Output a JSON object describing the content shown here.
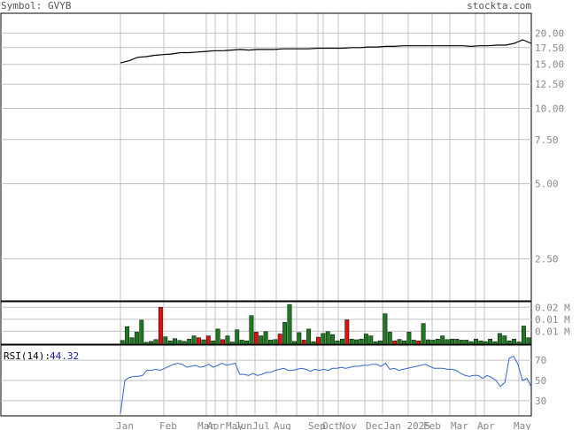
{
  "header": {
    "symbol_label": "Symbol: GVYB",
    "brand": "stockta.com"
  },
  "colors": {
    "grid": "#c0c0c0",
    "frame": "#000000",
    "price": "#000000",
    "up": "#1e7a1e",
    "down": "#dd1111",
    "rsi_line": "#3366cc",
    "rsi_value": "#1a1aa8",
    "axis_text": "#888888"
  },
  "chart_data": [
    {
      "id": "price",
      "type": "line",
      "y_scale": "log",
      "ylim": [
        1.7,
        24
      ],
      "yticks": [
        "20.00",
        "17.50",
        "15.00",
        "12.50",
        "10.00",
        "7.50",
        "5.00",
        "2.50"
      ],
      "ytick_values": [
        20,
        17.5,
        15,
        12.5,
        10,
        7.5,
        5,
        2.5
      ],
      "x": [
        "Jan",
        "",
        "",
        "",
        "",
        "Feb",
        "",
        "",
        "",
        "",
        "Mar",
        "Apr",
        "",
        "May",
        "Jun",
        "",
        "Jul",
        "",
        "",
        "Aug",
        "",
        "",
        "",
        "",
        "Sep",
        "Oct",
        "",
        "Nov",
        "",
        "",
        "",
        "Dec",
        "",
        "Jan 2025",
        "",
        "",
        "",
        "Feb",
        "",
        "",
        "Mar",
        "",
        "",
        "",
        "Apr",
        "",
        "",
        "May",
        ""
      ],
      "values": [
        15.2,
        15.5,
        16.0,
        16.1,
        16.3,
        16.4,
        16.5,
        16.7,
        16.7,
        16.8,
        16.9,
        17.0,
        17.0,
        17.1,
        17.2,
        17.1,
        17.2,
        17.2,
        17.2,
        17.3,
        17.3,
        17.3,
        17.3,
        17.4,
        17.4,
        17.4,
        17.4,
        17.5,
        17.5,
        17.6,
        17.6,
        17.7,
        17.7,
        17.8,
        17.8,
        17.8,
        17.8,
        17.8,
        17.8,
        17.8,
        17.8,
        17.7,
        17.8,
        17.8,
        17.9,
        17.9,
        18.2,
        18.8,
        18.2
      ]
    },
    {
      "id": "volume",
      "type": "bar",
      "yticks": [
        "0.02 M",
        "0.01 M",
        "0.01 M"
      ],
      "ylim": [
        0,
        0.023
      ],
      "values": [
        0.002,
        0.0095,
        0.0035,
        0.0065,
        0.013,
        0.001,
        0.0015,
        0.0025,
        0.02,
        0.004,
        0.0018,
        0.003,
        0.002,
        0.0015,
        0.0028,
        0.0045,
        0.0035,
        0.0024,
        0.0045,
        0.0018,
        0.0082,
        0.0025,
        0.0045,
        0.0012,
        0.0078,
        0.0022,
        0.0018,
        0.0155,
        0.0065,
        0.0045,
        0.0068,
        0.0022,
        0.0025,
        0.0055,
        0.0118,
        0.0215,
        0.0015,
        0.0063,
        0.0022,
        0.0082,
        0.0014,
        0.0038,
        0.0058,
        0.0068,
        0.0052,
        0.0018,
        0.0028,
        0.0132,
        0.0028,
        0.0024,
        0.0028,
        0.0055,
        0.0045,
        0.0014,
        0.0018,
        0.0165,
        0.0065,
        0.0018,
        0.0026,
        0.0018,
        0.0065,
        0.0022,
        0.0018,
        0.0112,
        0.0024,
        0.0022,
        0.0028,
        0.0045,
        0.0025,
        0.0028,
        0.0028,
        0.0022,
        0.0022,
        0.0014,
        0.0028,
        0.0018,
        0.0014,
        0.0028,
        0.0014,
        0.0058,
        0.0045,
        0.0018,
        0.0028,
        0.0012,
        0.0098,
        0.0035
      ],
      "colors": [
        "up",
        "up",
        "up",
        "up",
        "up",
        "up",
        "up",
        "up",
        "down",
        "up",
        "up",
        "up",
        "up",
        "up",
        "up",
        "up",
        "down",
        "up",
        "down",
        "up",
        "up",
        "down",
        "up",
        "up",
        "up",
        "up",
        "up",
        "up",
        "down",
        "up",
        "up",
        "up",
        "up",
        "down",
        "up",
        "up",
        "up",
        "up",
        "down",
        "up",
        "up",
        "down",
        "up",
        "up",
        "up",
        "up",
        "up",
        "down",
        "up",
        "up",
        "up",
        "up",
        "up",
        "up",
        "up",
        "up",
        "up",
        "down",
        "up",
        "up",
        "up",
        "up",
        "down",
        "up",
        "up",
        "up",
        "up",
        "up",
        "up",
        "up",
        "up",
        "up",
        "up",
        "up",
        "up",
        "up",
        "up",
        "up",
        "up",
        "up",
        "up",
        "up",
        "up",
        "up",
        "up",
        "up"
      ]
    },
    {
      "id": "rsi",
      "type": "line",
      "label": "RSI(14):",
      "current": "44.32",
      "ylim": [
        15,
        85
      ],
      "yticks": [
        "70",
        "50",
        "30"
      ],
      "ytick_values": [
        70,
        50,
        30
      ],
      "values": [
        17,
        50,
        53,
        54,
        54,
        55,
        60,
        60,
        61,
        60,
        62,
        64,
        66,
        67,
        66,
        63,
        64,
        65,
        63,
        64,
        66,
        63,
        65,
        67,
        65,
        66,
        67,
        56,
        56,
        55,
        57,
        55,
        56,
        58,
        58,
        60,
        61,
        62,
        60,
        60,
        61,
        62,
        61,
        59,
        61,
        60,
        61,
        60,
        62,
        62,
        63,
        62,
        63,
        64,
        64,
        65,
        65,
        66,
        66,
        64,
        67,
        61,
        62,
        60,
        61,
        62,
        63,
        64,
        65,
        66,
        64,
        62,
        62,
        62,
        61,
        61,
        60,
        57,
        55,
        54,
        55,
        55,
        52,
        55,
        53,
        50,
        44,
        48,
        72,
        74,
        66,
        50,
        52,
        44
      ]
    }
  ],
  "x_axis": {
    "labels": [
      "Jan",
      "Feb",
      "Mar",
      "Apr",
      "May",
      "Jun",
      "Jul",
      "Aug",
      "Sep",
      "Oct",
      "Nov",
      "Dec",
      "Jan 2025",
      "Feb",
      "Mar",
      "Apr",
      "May"
    ]
  }
}
